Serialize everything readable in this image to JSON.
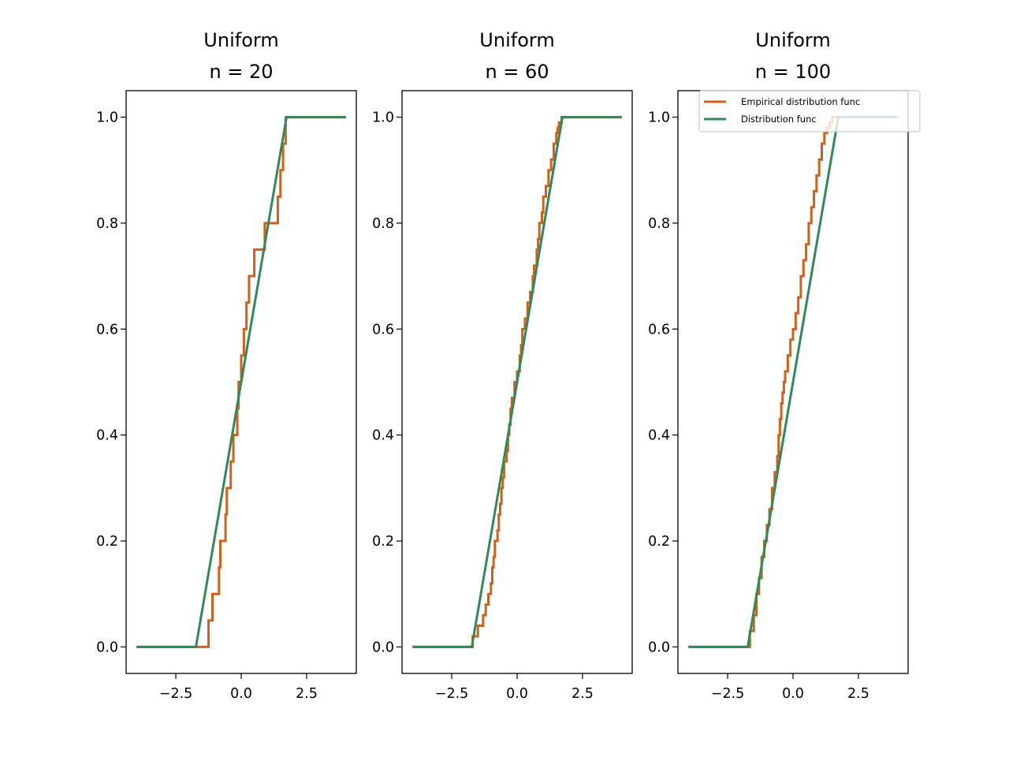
{
  "colors": {
    "empirical": "#d2601a",
    "cdf": "#2e8b57"
  },
  "chart_data": [
    {
      "type": "line",
      "title": [
        "Uniform",
        "n = 20"
      ],
      "xlim": [
        -4.4,
        4.4
      ],
      "ylim": [
        -0.05,
        1.05
      ],
      "xticks": [
        -2.5,
        0.0,
        2.5
      ],
      "xtick_labels": [
        "−2.5",
        "0.0",
        "2.5"
      ],
      "yticks": [
        0.0,
        0.2,
        0.4,
        0.6,
        0.8,
        1.0
      ],
      "ytick_labels": [
        "0.0",
        "0.2",
        "0.4",
        "0.6",
        "0.8",
        "1.0"
      ],
      "legend": null,
      "series": [
        {
          "key": "empirical",
          "color": "#d2601a",
          "x": [
            -4.0,
            -1.25,
            -1.1,
            -0.85,
            -0.8,
            -0.6,
            -0.55,
            -0.4,
            -0.3,
            -0.15,
            -0.1,
            0.0,
            0.1,
            0.2,
            0.3,
            0.5,
            0.9,
            1.4,
            1.5,
            1.6,
            1.7,
            4.0
          ],
          "y": [
            0.0,
            0.05,
            0.1,
            0.15,
            0.2,
            0.25,
            0.3,
            0.35,
            0.4,
            0.45,
            0.5,
            0.55,
            0.6,
            0.65,
            0.7,
            0.75,
            0.8,
            0.85,
            0.9,
            0.95,
            1.0,
            1.0
          ],
          "step": true
        },
        {
          "key": "cdf",
          "color": "#2e8b57",
          "x": [
            -4.0,
            -1.732,
            1.732,
            4.0
          ],
          "y": [
            0.0,
            0.0,
            1.0,
            1.0
          ],
          "step": false
        }
      ]
    },
    {
      "type": "line",
      "title": [
        "Uniform",
        "n = 60"
      ],
      "xlim": [
        -4.4,
        4.4
      ],
      "ylim": [
        -0.05,
        1.05
      ],
      "xticks": [
        -2.5,
        0.0,
        2.5
      ],
      "xtick_labels": [
        "−2.5",
        "0.0",
        "2.5"
      ],
      "yticks": [
        0.0,
        0.2,
        0.4,
        0.6,
        0.8,
        1.0
      ],
      "ytick_labels": [
        "0.0",
        "0.2",
        "0.4",
        "0.6",
        "0.8",
        "1.0"
      ],
      "legend": null,
      "series": [
        {
          "key": "empirical",
          "color": "#d2601a",
          "x": [
            -4.0,
            -1.7,
            -1.5,
            -1.3,
            -1.2,
            -1.1,
            -1.0,
            -0.95,
            -0.9,
            -0.85,
            -0.75,
            -0.7,
            -0.65,
            -0.6,
            -0.55,
            -0.5,
            -0.4,
            -0.35,
            -0.3,
            -0.25,
            -0.2,
            -0.1,
            0.0,
            0.1,
            0.15,
            0.2,
            0.3,
            0.4,
            0.5,
            0.6,
            0.65,
            0.75,
            0.8,
            0.85,
            0.95,
            1.0,
            1.1,
            1.2,
            1.3,
            1.4,
            1.5,
            1.55,
            1.6,
            1.7,
            4.0
          ],
          "y": [
            0.0,
            0.02,
            0.04,
            0.06,
            0.08,
            0.1,
            0.12,
            0.15,
            0.17,
            0.2,
            0.22,
            0.25,
            0.27,
            0.3,
            0.32,
            0.35,
            0.37,
            0.4,
            0.42,
            0.45,
            0.47,
            0.5,
            0.52,
            0.55,
            0.57,
            0.6,
            0.62,
            0.65,
            0.67,
            0.7,
            0.72,
            0.75,
            0.77,
            0.8,
            0.82,
            0.85,
            0.87,
            0.9,
            0.92,
            0.95,
            0.97,
            0.98,
            0.99,
            1.0,
            1.0
          ],
          "step": true
        },
        {
          "key": "cdf",
          "color": "#2e8b57",
          "x": [
            -4.0,
            -1.732,
            1.732,
            4.0
          ],
          "y": [
            0.0,
            0.0,
            1.0,
            1.0
          ],
          "step": false
        }
      ]
    },
    {
      "type": "line",
      "title": [
        "Uniform",
        "n = 100"
      ],
      "xlim": [
        -4.4,
        4.4
      ],
      "ylim": [
        -0.05,
        1.05
      ],
      "xticks": [
        -2.5,
        0.0,
        2.5
      ],
      "xtick_labels": [
        "−2.5",
        "0.0",
        "2.5"
      ],
      "yticks": [
        0.0,
        0.2,
        0.4,
        0.6,
        0.8,
        1.0
      ],
      "ytick_labels": [
        "0.0",
        "0.2",
        "0.4",
        "0.6",
        "0.8",
        "1.0"
      ],
      "legend": {
        "placement": "upper right",
        "entries": [
          {
            "label": "Empirical distribution func",
            "key": "empirical"
          },
          {
            "label": "Distribution func",
            "key": "cdf"
          }
        ]
      },
      "series": [
        {
          "key": "empirical",
          "color": "#d2601a",
          "x": [
            -4.0,
            -1.65,
            -1.5,
            -1.4,
            -1.3,
            -1.2,
            -1.1,
            -1.0,
            -0.9,
            -0.8,
            -0.7,
            -0.6,
            -0.55,
            -0.5,
            -0.45,
            -0.4,
            -0.35,
            -0.3,
            -0.2,
            -0.1,
            0.0,
            0.1,
            0.2,
            0.3,
            0.4,
            0.5,
            0.6,
            0.7,
            0.8,
            0.9,
            1.0,
            1.1,
            1.2,
            1.3,
            1.4,
            1.5,
            1.6,
            1.7
          ],
          "y": [
            0.0,
            0.03,
            0.06,
            0.1,
            0.13,
            0.17,
            0.2,
            0.23,
            0.26,
            0.3,
            0.33,
            0.36,
            0.4,
            0.43,
            0.46,
            0.48,
            0.5,
            0.52,
            0.55,
            0.58,
            0.6,
            0.63,
            0.66,
            0.7,
            0.73,
            0.76,
            0.8,
            0.83,
            0.86,
            0.89,
            0.92,
            0.95,
            0.97,
            0.98,
            0.99,
            1.0,
            1.0,
            1.0
          ],
          "step": true
        },
        {
          "key": "cdf",
          "color": "#2e8b57",
          "x": [
            -4.0,
            -1.732,
            1.732,
            4.0
          ],
          "y": [
            0.0,
            0.0,
            1.0,
            1.0
          ],
          "step": false
        }
      ]
    }
  ]
}
